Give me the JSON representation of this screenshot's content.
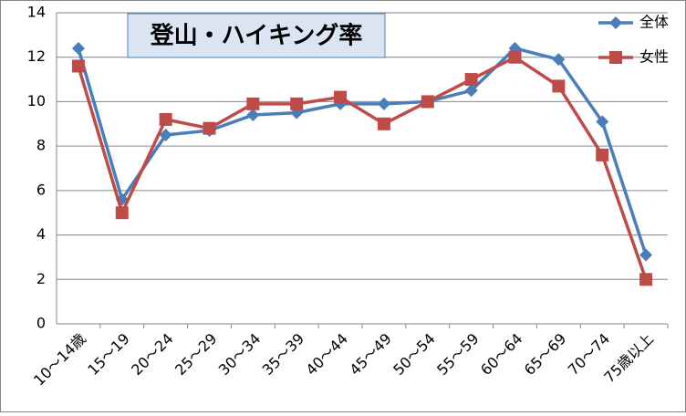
{
  "chart_data": {
    "type": "line",
    "title": "登山・ハイキング率",
    "categories": [
      "10～14歳",
      "15～19",
      "20～24",
      "25～29",
      "30～34",
      "35～39",
      "40～44",
      "45～49",
      "50～54",
      "55～59",
      "60～64",
      "65～69",
      "70～74",
      "75歳以上"
    ],
    "series": [
      {
        "name": "全体",
        "color": "#4a7ebb",
        "marker": "diamond",
        "values": [
          12.4,
          5.6,
          8.5,
          8.7,
          9.4,
          9.5,
          9.9,
          9.9,
          10.0,
          10.5,
          12.4,
          11.9,
          9.1,
          3.1
        ]
      },
      {
        "name": "女性",
        "color": "#be4b48",
        "marker": "square",
        "values": [
          11.6,
          5.0,
          9.2,
          8.8,
          9.9,
          9.9,
          10.2,
          9.0,
          10.0,
          11.0,
          12.0,
          10.7,
          7.6,
          2.0
        ]
      }
    ],
    "ylim": [
      0,
      14
    ],
    "yticks": [
      0,
      2,
      4,
      6,
      8,
      10,
      12,
      14
    ],
    "grid": true,
    "legend": "top-right"
  }
}
